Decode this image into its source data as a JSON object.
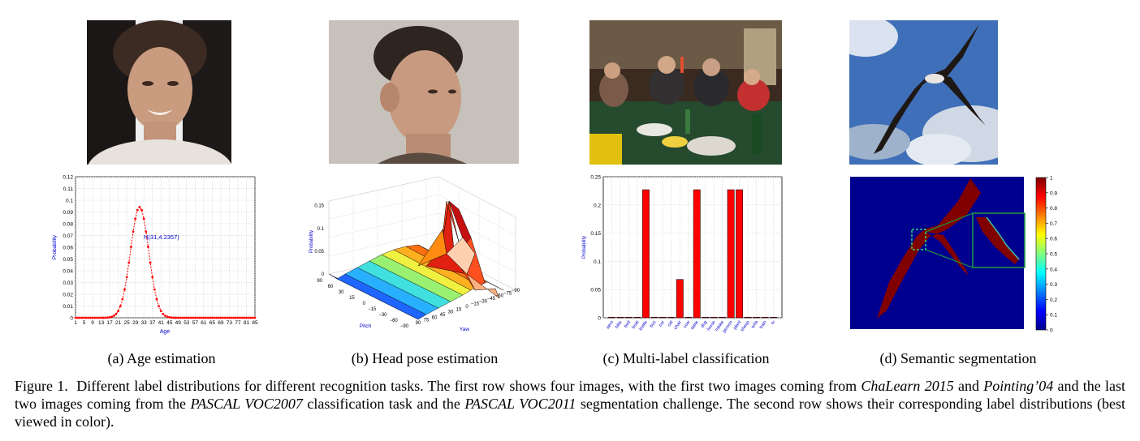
{
  "figure": {
    "subcaptions": {
      "a": "(a) Age estimation",
      "b": "(b) Head pose estimation",
      "c": "(c) Multi-label classification",
      "d": "(d) Semantic segmentation"
    },
    "caption": {
      "label": "Figure 1.",
      "p1": "Different label distributions for different recognition tasks. The first row shows four images, with the first two images coming from ",
      "em1": "ChaLearn 2015",
      "p2": " and ",
      "em2": "Pointing’04",
      "p3": " and the last two images coming from the ",
      "em3": "PASCAL VOC2007",
      "p4": " classification task and the ",
      "em4": "PASCAL VOC2011",
      "p5": " segmentation challenge. The second row shows their corresponding label distributions (best viewed in color)."
    }
  },
  "chart_data": [
    {
      "type": "line",
      "panel": "a",
      "xlabel": "Age",
      "ylabel": "Probability",
      "annotation": "N(31,4.2357)",
      "xlim": [
        1,
        85
      ],
      "ylim": [
        0,
        0.12
      ],
      "xticks": [
        1,
        5,
        9,
        13,
        17,
        21,
        25,
        29,
        33,
        37,
        41,
        45,
        49,
        53,
        57,
        61,
        65,
        69,
        73,
        77,
        81,
        85
      ],
      "yticks": [
        "0",
        "0.01",
        "0.02",
        "0.03",
        "0.04",
        "0.05",
        "0.06",
        "0.07",
        "0.08",
        "0.09",
        "0.1",
        "0.11",
        "0.12"
      ],
      "mean": 31,
      "sigma": 4.2357,
      "color": "#ff0000"
    },
    {
      "type": "surface",
      "panel": "b",
      "xlabel": "Yaw",
      "ylabel": "Pitch",
      "zlabel": "Probability",
      "yaw_ticks": [
        "90",
        "75",
        "60",
        "45",
        "30",
        "15",
        "0",
        "−15",
        "−30",
        "−45",
        "−60",
        "−75",
        "−90"
      ],
      "pitch_ticks": [
        "90",
        "60",
        "30",
        "15",
        "0",
        "−15",
        "−30",
        "−60",
        "−90"
      ],
      "z_ticks": [
        "0",
        "0.05",
        "0.1",
        "0.15"
      ],
      "zlim": [
        0,
        0.16
      ],
      "peak": 0.155
    },
    {
      "type": "bar",
      "panel": "c",
      "ylabel": "Probability",
      "categories": [
        "aero",
        "bike",
        "bird",
        "boat",
        "bottle",
        "bus",
        "car",
        "cat",
        "chair",
        "cow",
        "table",
        "dog",
        "horse",
        "mbike",
        "person",
        "plant",
        "sheep",
        "sofa",
        "train",
        "tv"
      ],
      "values": [
        0,
        0,
        0,
        0,
        0.227,
        0,
        0,
        0,
        0.068,
        0,
        0.227,
        0,
        0,
        0,
        0.227,
        0.227,
        0,
        0,
        0,
        0
      ],
      "ylim": [
        0,
        0.25
      ],
      "yticks": [
        "0",
        "0.05",
        "0.1",
        "0.15",
        "0.2",
        "0.25"
      ],
      "color": "#ff0000"
    },
    {
      "type": "heatmap",
      "panel": "d",
      "colorbar_ticks": [
        "0",
        "0.1",
        "0.2",
        "0.3",
        "0.4",
        "0.5",
        "0.6",
        "0.7",
        "0.8",
        "0.9",
        "1"
      ]
    }
  ]
}
